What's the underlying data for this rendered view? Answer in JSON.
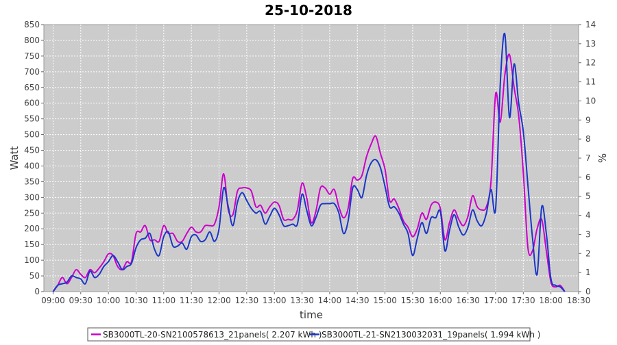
{
  "chart_data": {
    "type": "line",
    "title": "25-10-2018",
    "xlabel": "time",
    "ylabel": "Watt",
    "y2label": "%",
    "ylim": [
      0,
      850
    ],
    "y2lim": [
      0,
      14
    ],
    "xlim": [
      "08:50",
      "18:30"
    ],
    "grid": true,
    "legend_position": "bottom",
    "x_ticks": [
      "09:00",
      "09:30",
      "10:00",
      "10:30",
      "11:00",
      "11:30",
      "12:00",
      "12:30",
      "13:00",
      "13:30",
      "14:00",
      "14:30",
      "15:00",
      "15:30",
      "16:00",
      "16:30",
      "17:00",
      "17:30",
      "18:00",
      "18:30"
    ],
    "y_ticks": [
      0,
      50,
      100,
      150,
      200,
      250,
      300,
      350,
      400,
      450,
      500,
      550,
      600,
      650,
      700,
      750,
      800,
      850
    ],
    "y2_ticks": [
      0,
      1,
      2,
      3,
      4,
      5,
      6,
      7,
      8,
      9,
      10,
      11,
      12,
      13,
      14
    ],
    "series": [
      {
        "name": "SB3000TL-20-SN2100578613_21panels( 2.207 kWh )",
        "color": "#cc00cc",
        "points": [
          [
            "09:00",
            0
          ],
          [
            "09:05",
            20
          ],
          [
            "09:10",
            45
          ],
          [
            "09:15",
            25
          ],
          [
            "09:20",
            45
          ],
          [
            "09:25",
            70
          ],
          [
            "09:30",
            55
          ],
          [
            "09:35",
            45
          ],
          [
            "09:40",
            70
          ],
          [
            "09:45",
            60
          ],
          [
            "09:50",
            75
          ],
          [
            "09:55",
            95
          ],
          [
            "10:00",
            120
          ],
          [
            "10:05",
            115
          ],
          [
            "10:10",
            80
          ],
          [
            "10:15",
            70
          ],
          [
            "10:20",
            95
          ],
          [
            "10:25",
            95
          ],
          [
            "10:30",
            185
          ],
          [
            "10:35",
            190
          ],
          [
            "10:40",
            210
          ],
          [
            "10:45",
            165
          ],
          [
            "10:50",
            165
          ],
          [
            "10:55",
            160
          ],
          [
            "11:00",
            210
          ],
          [
            "11:05",
            185
          ],
          [
            "11:10",
            185
          ],
          [
            "11:15",
            160
          ],
          [
            "11:20",
            160
          ],
          [
            "11:25",
            185
          ],
          [
            "11:30",
            205
          ],
          [
            "11:35",
            190
          ],
          [
            "11:40",
            190
          ],
          [
            "11:45",
            210
          ],
          [
            "11:50",
            210
          ],
          [
            "11:55",
            215
          ],
          [
            "12:00",
            270
          ],
          [
            "12:05",
            375
          ],
          [
            "12:10",
            260
          ],
          [
            "12:15",
            245
          ],
          [
            "12:20",
            320
          ],
          [
            "12:25",
            330
          ],
          [
            "12:30",
            330
          ],
          [
            "12:35",
            320
          ],
          [
            "12:40",
            270
          ],
          [
            "12:45",
            275
          ],
          [
            "12:50",
            250
          ],
          [
            "12:55",
            270
          ],
          [
            "13:00",
            285
          ],
          [
            "13:05",
            275
          ],
          [
            "13:10",
            230
          ],
          [
            "13:15",
            230
          ],
          [
            "13:20",
            230
          ],
          [
            "13:25",
            260
          ],
          [
            "13:30",
            345
          ],
          [
            "13:35",
            300
          ],
          [
            "13:40",
            220
          ],
          [
            "13:45",
            255
          ],
          [
            "13:50",
            330
          ],
          [
            "13:55",
            330
          ],
          [
            "14:00",
            310
          ],
          [
            "14:05",
            325
          ],
          [
            "14:10",
            270
          ],
          [
            "14:15",
            235
          ],
          [
            "14:20",
            265
          ],
          [
            "14:25",
            360
          ],
          [
            "14:30",
            355
          ],
          [
            "14:35",
            370
          ],
          [
            "14:40",
            430
          ],
          [
            "14:45",
            470
          ],
          [
            "14:50",
            495
          ],
          [
            "14:55",
            440
          ],
          [
            "15:00",
            390
          ],
          [
            "15:05",
            290
          ],
          [
            "15:10",
            295
          ],
          [
            "15:15",
            265
          ],
          [
            "15:20",
            225
          ],
          [
            "15:25",
            205
          ],
          [
            "15:30",
            175
          ],
          [
            "15:35",
            200
          ],
          [
            "15:40",
            250
          ],
          [
            "15:45",
            230
          ],
          [
            "15:50",
            275
          ],
          [
            "15:55",
            285
          ],
          [
            "16:00",
            265
          ],
          [
            "16:05",
            165
          ],
          [
            "16:10",
            220
          ],
          [
            "16:15",
            260
          ],
          [
            "16:20",
            230
          ],
          [
            "16:25",
            210
          ],
          [
            "16:30",
            240
          ],
          [
            "16:35",
            305
          ],
          [
            "16:40",
            270
          ],
          [
            "16:45",
            260
          ],
          [
            "16:50",
            270
          ],
          [
            "16:55",
            350
          ],
          [
            "17:00",
            630
          ],
          [
            "17:05",
            540
          ],
          [
            "17:10",
            690
          ],
          [
            "17:15",
            755
          ],
          [
            "17:20",
            650
          ],
          [
            "17:25",
            560
          ],
          [
            "17:30",
            380
          ],
          [
            "17:35",
            140
          ],
          [
            "17:40",
            130
          ],
          [
            "17:45",
            200
          ],
          [
            "17:50",
            230
          ],
          [
            "17:55",
            130
          ],
          [
            "18:00",
            30
          ],
          [
            "18:05",
            15
          ],
          [
            "18:10",
            20
          ],
          [
            "18:15",
            0
          ]
        ]
      },
      {
        "name": "SB3000TL-21-SN2130032031_19panels( 1.994 kWh )",
        "color": "#1a36c8",
        "points": [
          [
            "09:00",
            0
          ],
          [
            "09:05",
            20
          ],
          [
            "09:10",
            25
          ],
          [
            "09:15",
            30
          ],
          [
            "09:20",
            50
          ],
          [
            "09:25",
            45
          ],
          [
            "09:30",
            40
          ],
          [
            "09:35",
            25
          ],
          [
            "09:40",
            65
          ],
          [
            "09:45",
            45
          ],
          [
            "09:50",
            55
          ],
          [
            "09:55",
            80
          ],
          [
            "10:00",
            95
          ],
          [
            "10:05",
            115
          ],
          [
            "10:10",
            95
          ],
          [
            "10:15",
            70
          ],
          [
            "10:20",
            80
          ],
          [
            "10:25",
            90
          ],
          [
            "10:30",
            140
          ],
          [
            "10:35",
            165
          ],
          [
            "10:40",
            170
          ],
          [
            "10:45",
            185
          ],
          [
            "10:50",
            135
          ],
          [
            "10:55",
            115
          ],
          [
            "11:00",
            175
          ],
          [
            "11:05",
            190
          ],
          [
            "11:10",
            145
          ],
          [
            "11:15",
            145
          ],
          [
            "11:20",
            155
          ],
          [
            "11:25",
            135
          ],
          [
            "11:30",
            175
          ],
          [
            "11:35",
            180
          ],
          [
            "11:40",
            160
          ],
          [
            "11:45",
            165
          ],
          [
            "11:50",
            190
          ],
          [
            "11:55",
            160
          ],
          [
            "12:00",
            200
          ],
          [
            "12:05",
            330
          ],
          [
            "12:10",
            270
          ],
          [
            "12:15",
            210
          ],
          [
            "12:20",
            285
          ],
          [
            "12:25",
            315
          ],
          [
            "12:30",
            290
          ],
          [
            "12:35",
            265
          ],
          [
            "12:40",
            250
          ],
          [
            "12:45",
            255
          ],
          [
            "12:50",
            215
          ],
          [
            "12:55",
            240
          ],
          [
            "13:00",
            265
          ],
          [
            "13:05",
            245
          ],
          [
            "13:10",
            210
          ],
          [
            "13:15",
            210
          ],
          [
            "13:20",
            215
          ],
          [
            "13:25",
            215
          ],
          [
            "13:30",
            310
          ],
          [
            "13:35",
            260
          ],
          [
            "13:40",
            210
          ],
          [
            "13:45",
            235
          ],
          [
            "13:50",
            275
          ],
          [
            "13:55",
            280
          ],
          [
            "14:00",
            280
          ],
          [
            "14:05",
            280
          ],
          [
            "14:10",
            250
          ],
          [
            "14:15",
            185
          ],
          [
            "14:20",
            225
          ],
          [
            "14:25",
            330
          ],
          [
            "14:30",
            325
          ],
          [
            "14:35",
            300
          ],
          [
            "14:40",
            370
          ],
          [
            "14:45",
            410
          ],
          [
            "14:50",
            420
          ],
          [
            "14:55",
            395
          ],
          [
            "15:00",
            335
          ],
          [
            "15:05",
            270
          ],
          [
            "15:10",
            270
          ],
          [
            "15:15",
            250
          ],
          [
            "15:20",
            215
          ],
          [
            "15:25",
            185
          ],
          [
            "15:30",
            115
          ],
          [
            "15:35",
            170
          ],
          [
            "15:40",
            220
          ],
          [
            "15:45",
            185
          ],
          [
            "15:50",
            235
          ],
          [
            "15:55",
            235
          ],
          [
            "16:00",
            255
          ],
          [
            "16:05",
            130
          ],
          [
            "16:10",
            195
          ],
          [
            "16:15",
            245
          ],
          [
            "16:20",
            205
          ],
          [
            "16:25",
            180
          ],
          [
            "16:30",
            205
          ],
          [
            "16:35",
            260
          ],
          [
            "16:40",
            225
          ],
          [
            "16:45",
            210
          ],
          [
            "16:50",
            250
          ],
          [
            "16:55",
            325
          ],
          [
            "17:00",
            265
          ],
          [
            "17:05",
            660
          ],
          [
            "17:10",
            820
          ],
          [
            "17:15",
            555
          ],
          [
            "17:20",
            725
          ],
          [
            "17:25",
            600
          ],
          [
            "17:30",
            510
          ],
          [
            "17:35",
            340
          ],
          [
            "17:40",
            170
          ],
          [
            "17:45",
            55
          ],
          [
            "17:50",
            270
          ],
          [
            "17:55",
            185
          ],
          [
            "18:00",
            40
          ],
          [
            "18:05",
            20
          ],
          [
            "18:10",
            15
          ],
          [
            "18:15",
            0
          ]
        ]
      }
    ]
  }
}
